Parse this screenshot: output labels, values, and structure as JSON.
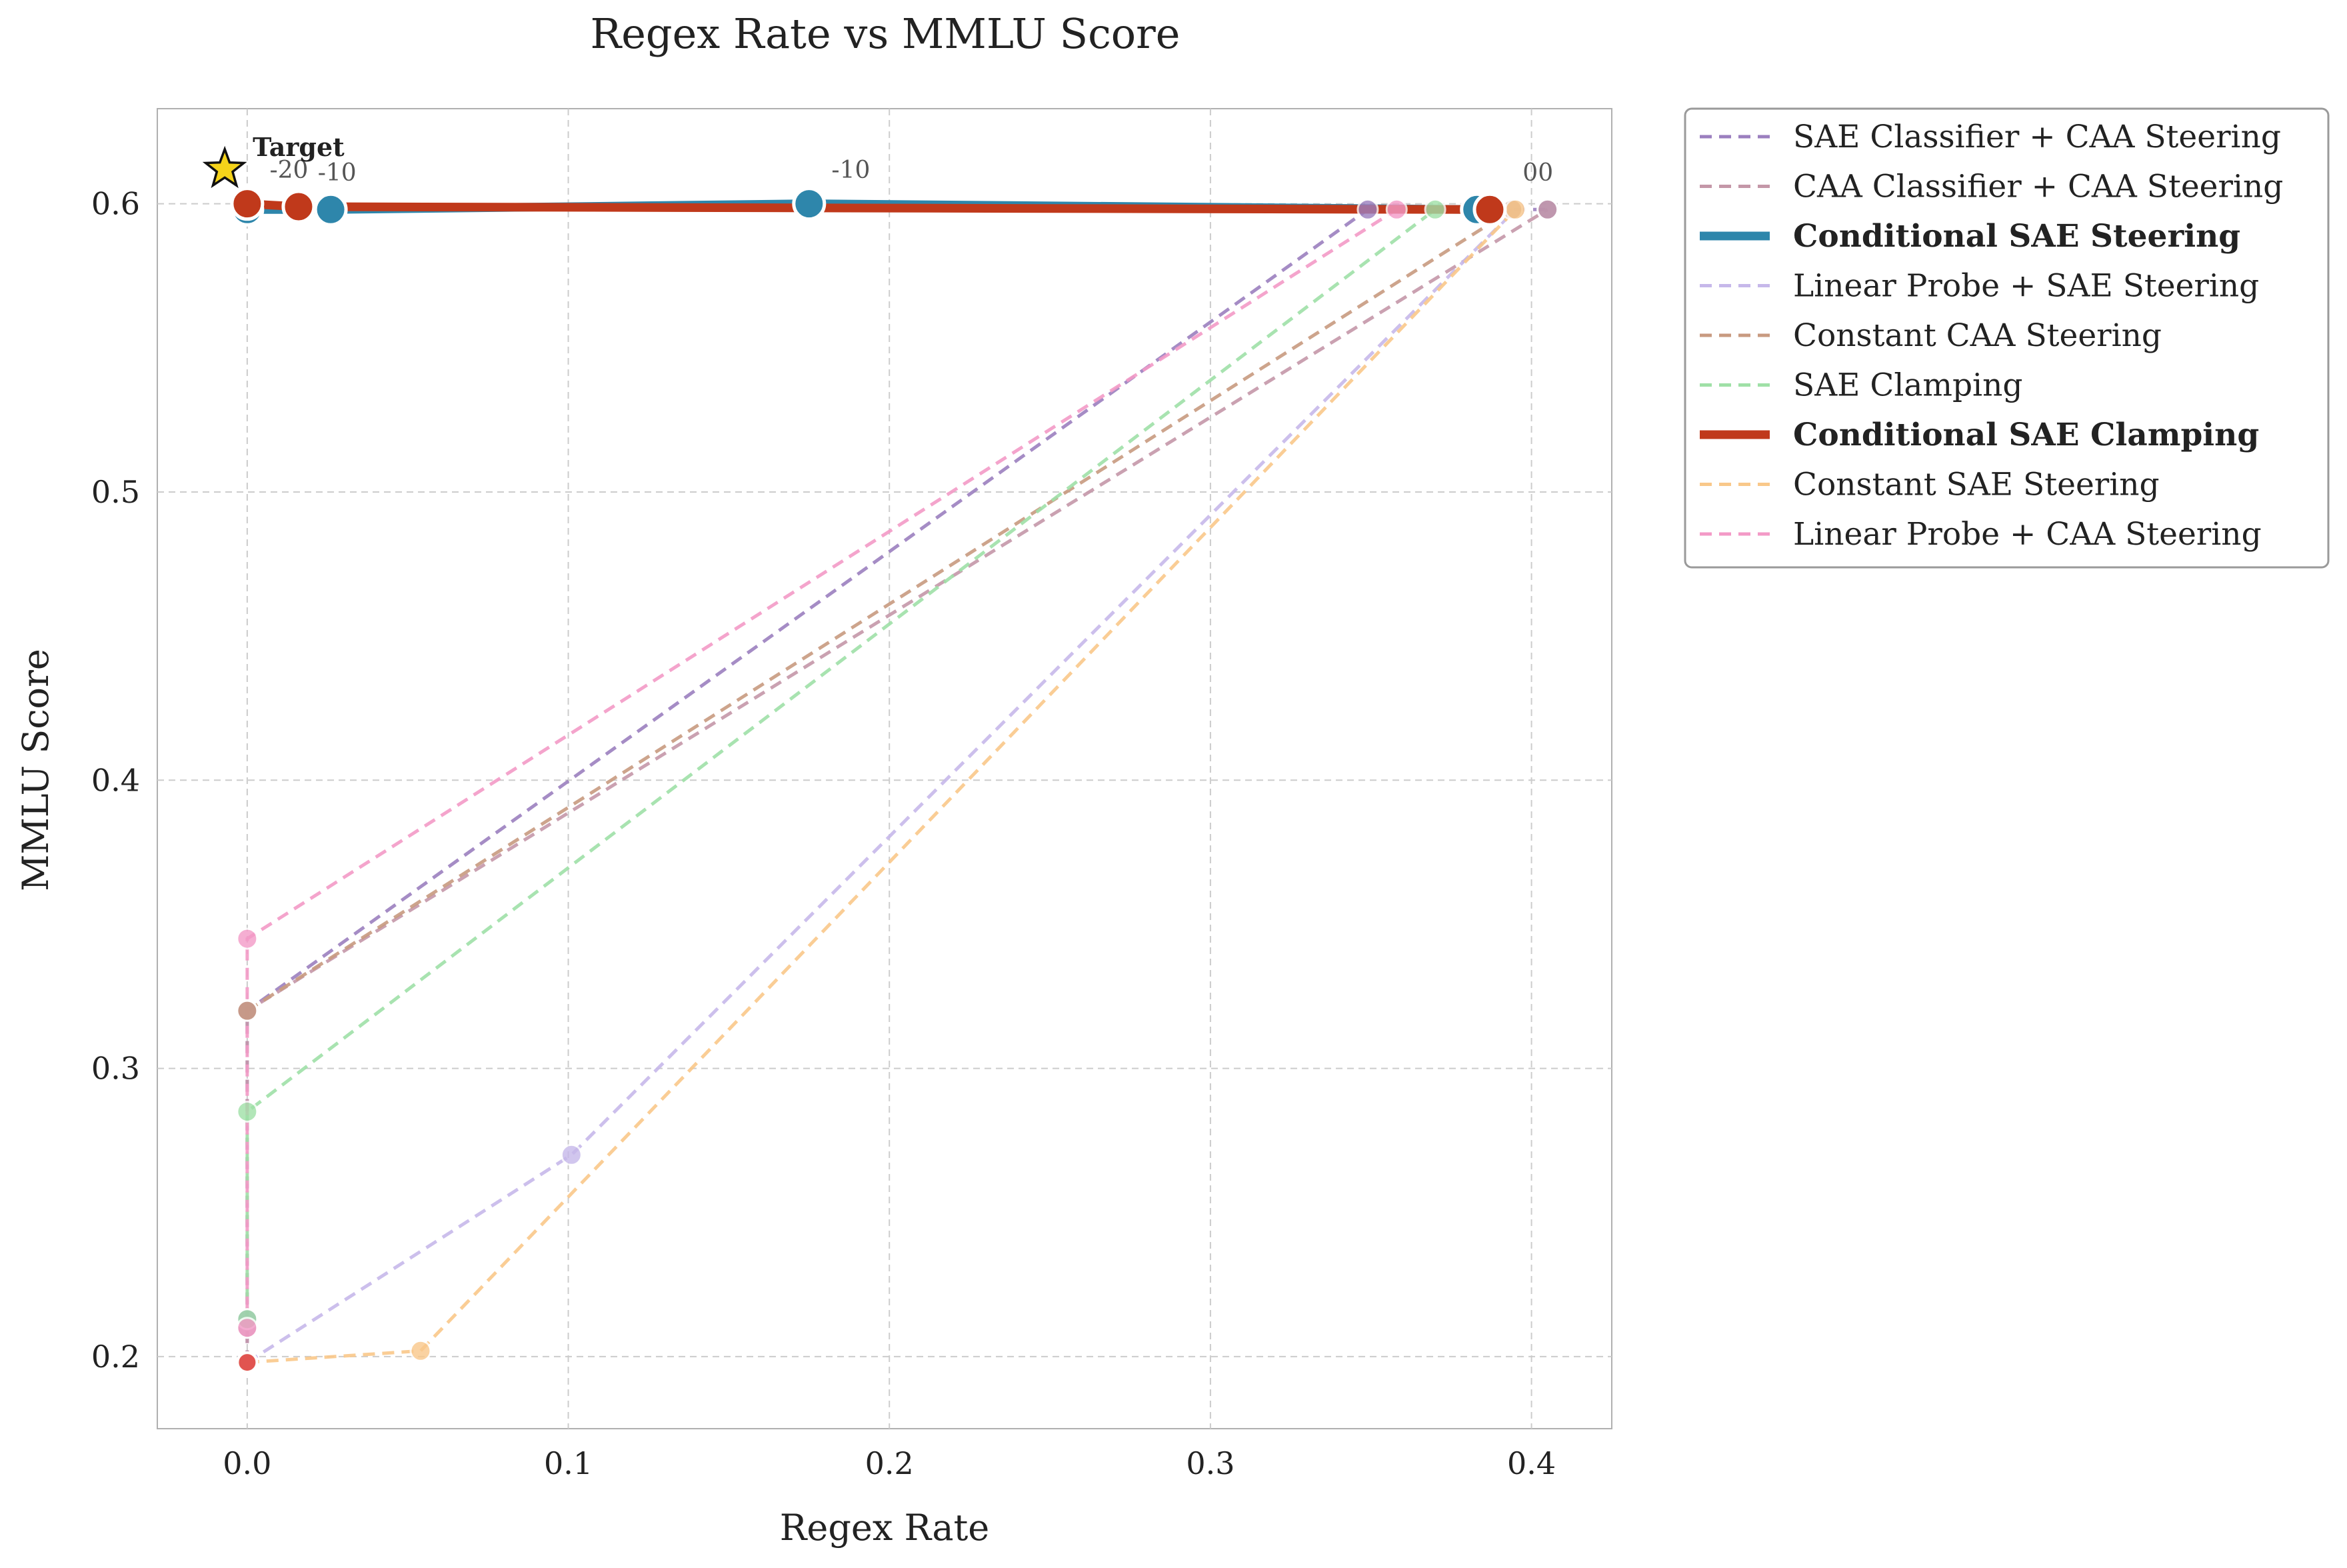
{
  "chart_data": {
    "type": "line",
    "title": "Regex Rate vs MMLU Score",
    "xlabel": "Regex Rate",
    "ylabel": "MMLU Score",
    "xlim": [
      -0.028,
      0.425
    ],
    "ylim": [
      0.175,
      0.633
    ],
    "xticks": [
      0.0,
      0.1,
      0.2,
      0.3,
      0.4
    ],
    "xtick_labels": [
      "0.0",
      "0.1",
      "0.2",
      "0.3",
      "0.4"
    ],
    "yticks": [
      0.2,
      0.3,
      0.4,
      0.5,
      0.6
    ],
    "ytick_labels": [
      "0.2",
      "0.3",
      "0.4",
      "0.5",
      "0.6"
    ],
    "grid": true,
    "legend_position": "outside-right-top",
    "target": {
      "x": -0.007,
      "y": 0.612,
      "label": "Target",
      "color": "#f5d31a"
    },
    "series": [
      {
        "name": "SAE Classifier + CAA Steering",
        "color": "#9b7fbf",
        "style": "dashed",
        "bold": false,
        "points": [
          [
            0.0,
            0.198
          ],
          [
            0.0,
            0.213
          ],
          [
            0.0,
            0.32
          ],
          [
            0.349,
            0.598
          ],
          [
            0.405,
            0.598
          ]
        ]
      },
      {
        "name": "CAA Classifier + CAA Steering",
        "color": "#c497a8",
        "style": "dashed",
        "bold": false,
        "points": [
          [
            0.0,
            0.198
          ],
          [
            0.0,
            0.21
          ],
          [
            0.0,
            0.32
          ],
          [
            0.405,
            0.598
          ]
        ]
      },
      {
        "name": "Conditional SAE Steering",
        "color": "#2e86ab",
        "style": "solid",
        "bold": true,
        "points": [
          [
            0.0,
            0.598
          ],
          [
            0.026,
            0.598
          ],
          [
            0.175,
            0.6
          ],
          [
            0.383,
            0.598
          ]
        ]
      },
      {
        "name": "Linear Probe + SAE Steering",
        "color": "#c6b8ea",
        "style": "dashed",
        "bold": false,
        "points": [
          [
            0.0,
            0.198
          ],
          [
            0.101,
            0.27
          ],
          [
            0.395,
            0.598
          ]
        ]
      },
      {
        "name": "Constant CAA Steering",
        "color": "#c89a80",
        "style": "dashed",
        "bold": false,
        "points": [
          [
            0.0,
            0.32
          ],
          [
            0.394,
            0.598
          ]
        ]
      },
      {
        "name": "SAE Clamping",
        "color": "#9fe0a7",
        "style": "dashed",
        "bold": false,
        "points": [
          [
            0.0,
            0.213
          ],
          [
            0.0,
            0.285
          ],
          [
            0.37,
            0.598
          ]
        ]
      },
      {
        "name": "Conditional SAE Clamping",
        "color": "#c0391b",
        "style": "solid",
        "bold": true,
        "points": [
          [
            0.0,
            0.6
          ],
          [
            0.016,
            0.599
          ],
          [
            0.387,
            0.598
          ]
        ]
      },
      {
        "name": "Constant SAE Steering",
        "color": "#f9c88a",
        "style": "dashed",
        "bold": false,
        "points": [
          [
            0.0,
            0.198
          ],
          [
            0.054,
            0.202
          ],
          [
            0.395,
            0.598
          ]
        ]
      },
      {
        "name": "Linear Probe + CAA Steering",
        "color": "#f39ac7",
        "style": "dashed",
        "bold": false,
        "points": [
          [
            0.0,
            0.21
          ],
          [
            0.0,
            0.345
          ],
          [
            0.358,
            0.598
          ]
        ]
      }
    ],
    "extra_markers": [
      {
        "x": 0.0,
        "y": 0.198,
        "color": "#e04848"
      }
    ],
    "annotations": [
      {
        "text": "-20",
        "x": 0.013,
        "y": 0.609
      },
      {
        "text": "-10",
        "x": 0.028,
        "y": 0.608
      },
      {
        "text": "-10",
        "x": 0.188,
        "y": 0.609
      },
      {
        "text": "00",
        "x": 0.402,
        "y": 0.608
      }
    ]
  }
}
